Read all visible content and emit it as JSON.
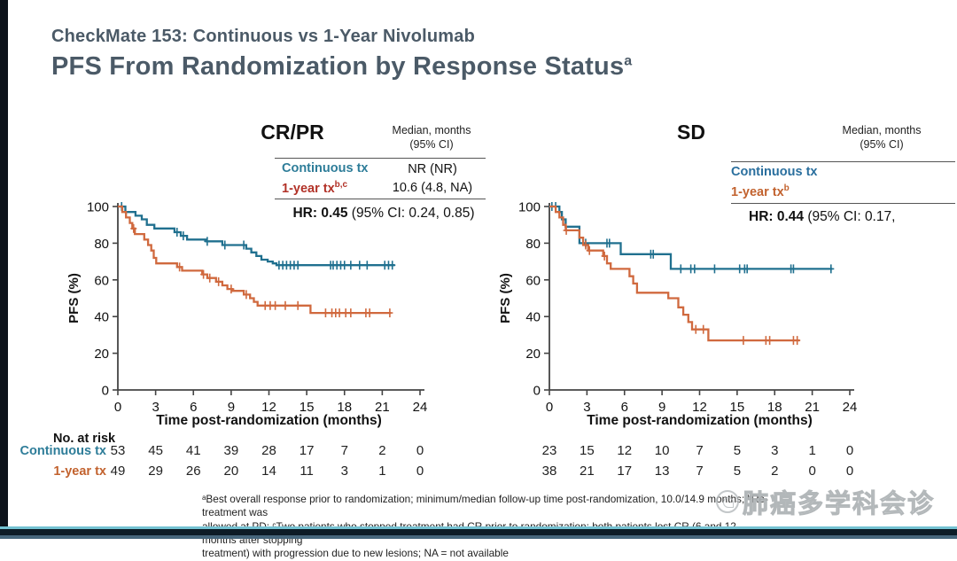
{
  "header": {
    "title": "CheckMate 153: Continuous vs 1-Year Nivolumab",
    "subtitle": "PFS From Randomization by Response Status",
    "subtitle_sup": "a",
    "title_color": "#4b5a67"
  },
  "chart_data": {
    "type": "line",
    "subtype": "kaplan-meier-step",
    "charts": [
      {
        "title": "CR/PR",
        "median_header_line1": "Median,  months",
        "median_header_line2": "(95% CI)",
        "legend_rows": [
          {
            "label": "Continuous  tx",
            "sup": "",
            "value": "NR  (NR)",
            "color": "#2e7d99"
          },
          {
            "label": "1-year  tx",
            "sup": "b,c",
            "value": "10.6  (4.8, NA)",
            "color": "#b23228"
          }
        ],
        "hr_bold": "HR: 0.45",
        "hr_rest": " (95% CI: 0.24, 0.85)",
        "ylabel": "PFS (%)",
        "xlabel": "Time post-randomization (months)",
        "xlim": [
          0,
          24
        ],
        "ylim": [
          0,
          100
        ],
        "xticks": [
          0,
          3,
          6,
          9,
          12,
          15,
          18,
          21,
          24
        ],
        "yticks": [
          0,
          20,
          40,
          60,
          80,
          100
        ],
        "series": [
          {
            "name": "Continuous tx",
            "color": "#20708f",
            "steps": [
              [
                0,
                100
              ],
              [
                0.6,
                97
              ],
              [
                1.4,
                95
              ],
              [
                1.9,
                93
              ],
              [
                2.3,
                90
              ],
              [
                2.9,
                88
              ],
              [
                4.5,
                86
              ],
              [
                5.0,
                84
              ],
              [
                5.5,
                82
              ],
              [
                7.0,
                81
              ],
              [
                8.3,
                79
              ],
              [
                10.2,
                77
              ],
              [
                10.6,
                75
              ],
              [
                11.0,
                73
              ],
              [
                11.4,
                71
              ],
              [
                11.9,
                70
              ],
              [
                12.3,
                69
              ],
              [
                12.6,
                68
              ],
              [
                22.0,
                68
              ]
            ],
            "censors": [
              [
                0.3,
                100
              ],
              [
                4.7,
                86
              ],
              [
                5.2,
                84
              ],
              [
                7.1,
                81
              ],
              [
                8.5,
                79
              ],
              [
                10.0,
                79
              ],
              [
                12.8,
                68
              ],
              [
                13.1,
                68
              ],
              [
                13.4,
                68
              ],
              [
                13.7,
                68
              ],
              [
                14.0,
                68
              ],
              [
                14.3,
                68
              ],
              [
                16.9,
                68
              ],
              [
                17.1,
                68
              ],
              [
                17.4,
                68
              ],
              [
                17.7,
                68
              ],
              [
                18.0,
                68
              ],
              [
                18.5,
                68
              ],
              [
                19.2,
                68
              ],
              [
                19.8,
                68
              ],
              [
                21.2,
                68
              ],
              [
                21.5,
                68
              ],
              [
                21.8,
                68
              ]
            ]
          },
          {
            "name": "1-year tx",
            "color": "#d0693e",
            "steps": [
              [
                0,
                100
              ],
              [
                0.35,
                97
              ],
              [
                0.65,
                94
              ],
              [
                0.95,
                91
              ],
              [
                1.15,
                88
              ],
              [
                1.35,
                85
              ],
              [
                2.1,
                82
              ],
              [
                2.4,
                79
              ],
              [
                2.65,
                76
              ],
              [
                2.85,
                72
              ],
              [
                3.05,
                69
              ],
              [
                4.7,
                67
              ],
              [
                5.1,
                65
              ],
              [
                6.7,
                63
              ],
              [
                7.1,
                61
              ],
              [
                7.8,
                59
              ],
              [
                8.3,
                57
              ],
              [
                8.7,
                55
              ],
              [
                9.1,
                54
              ],
              [
                10.0,
                52
              ],
              [
                10.5,
                50
              ],
              [
                10.8,
                48
              ],
              [
                11.1,
                46
              ],
              [
                15.3,
                42
              ],
              [
                21.7,
                42
              ]
            ],
            "censors": [
              [
                1.25,
                88
              ],
              [
                4.9,
                67
              ],
              [
                6.8,
                63
              ],
              [
                7.3,
                61
              ],
              [
                8.0,
                59
              ],
              [
                9.0,
                55
              ],
              [
                10.2,
                52
              ],
              [
                11.7,
                46
              ],
              [
                12.1,
                46
              ],
              [
                12.5,
                46
              ],
              [
                13.3,
                46
              ],
              [
                14.3,
                46
              ],
              [
                16.5,
                42
              ],
              [
                17.0,
                42
              ],
              [
                17.3,
                42
              ],
              [
                17.6,
                42
              ],
              [
                18.1,
                42
              ],
              [
                18.5,
                42
              ],
              [
                19.7,
                42
              ],
              [
                20.0,
                42
              ],
              [
                21.6,
                42
              ]
            ]
          }
        ],
        "at_risk": {
          "heading": "No. at risk",
          "rows": [
            {
              "label": "Continuous tx",
              "color": "#2e7d99",
              "values": [
                53,
                45,
                41,
                39,
                28,
                17,
                7,
                2,
                0
              ]
            },
            {
              "label": "1-year tx",
              "color": "#c2622e",
              "values": [
                49,
                29,
                26,
                20,
                14,
                11,
                3,
                1,
                0
              ]
            }
          ]
        }
      },
      {
        "title": "SD",
        "median_header_line1": "Median,  months",
        "median_header_line2": "(95% CI)",
        "legend_rows": [
          {
            "label": "Continuous  tx",
            "sup": "",
            "value": "",
            "color": "#2a6f9e"
          },
          {
            "label": "1-year  tx",
            "sup": "b",
            "value": "",
            "color": "#c2622e"
          }
        ],
        "hr_bold": "HR: 0.44",
        "hr_rest": " (95% CI: 0.17,",
        "ylabel": "PFS (%)",
        "xlabel": "Time post-randomization (months)",
        "xlim": [
          0,
          24
        ],
        "ylim": [
          0,
          100
        ],
        "xticks": [
          0,
          3,
          6,
          9,
          12,
          15,
          18,
          21,
          24
        ],
        "yticks": [
          0,
          20,
          40,
          60,
          80,
          100
        ],
        "series": [
          {
            "name": "Continuous tx",
            "color": "#20708f",
            "steps": [
              [
                0,
                100
              ],
              [
                0.8,
                97
              ],
              [
                1.0,
                93
              ],
              [
                1.3,
                89
              ],
              [
                2.4,
                80
              ],
              [
                5.7,
                74
              ],
              [
                9.7,
                66
              ],
              [
                22.6,
                66
              ]
            ],
            "censors": [
              [
                0.2,
                100
              ],
              [
                0.5,
                100
              ],
              [
                2.9,
                80
              ],
              [
                4.6,
                80
              ],
              [
                4.8,
                80
              ],
              [
                8.1,
                74
              ],
              [
                8.3,
                74
              ],
              [
                10.5,
                66
              ],
              [
                11.3,
                66
              ],
              [
                11.6,
                66
              ],
              [
                13.2,
                66
              ],
              [
                15.2,
                66
              ],
              [
                15.6,
                66
              ],
              [
                15.8,
                66
              ],
              [
                19.3,
                66
              ],
              [
                19.5,
                66
              ],
              [
                22.5,
                66
              ]
            ]
          },
          {
            "name": "1-year tx",
            "color": "#d0693e",
            "steps": [
              [
                0,
                100
              ],
              [
                0.5,
                97
              ],
              [
                0.8,
                94
              ],
              [
                1.1,
                90
              ],
              [
                1.3,
                87
              ],
              [
                2.4,
                83
              ],
              [
                2.7,
                79
              ],
              [
                3.1,
                76
              ],
              [
                4.3,
                73
              ],
              [
                4.6,
                69
              ],
              [
                4.9,
                66
              ],
              [
                6.4,
                62
              ],
              [
                6.7,
                58
              ],
              [
                7.0,
                53
              ],
              [
                9.5,
                50
              ],
              [
                10.3,
                45
              ],
              [
                10.7,
                41
              ],
              [
                11.1,
                37
              ],
              [
                11.4,
                33
              ],
              [
                12.7,
                27
              ],
              [
                20.0,
                27
              ]
            ],
            "censors": [
              [
                1.35,
                87
              ],
              [
                2.9,
                79
              ],
              [
                3.2,
                76
              ],
              [
                4.4,
                73
              ],
              [
                11.7,
                33
              ],
              [
                12.3,
                33
              ],
              [
                15.5,
                27
              ],
              [
                17.3,
                27
              ],
              [
                17.6,
                27
              ],
              [
                19.5,
                27
              ],
              [
                19.8,
                27
              ]
            ]
          }
        ],
        "at_risk": {
          "heading": "",
          "rows": [
            {
              "label": "",
              "color": "#2e7d99",
              "values": [
                23,
                15,
                12,
                10,
                7,
                5,
                3,
                1,
                0
              ]
            },
            {
              "label": "",
              "color": "#c2622e",
              "values": [
                38,
                21,
                17,
                13,
                7,
                5,
                2,
                0,
                0
              ]
            }
          ]
        }
      }
    ]
  },
  "footnotes": {
    "line1": "ᵃBest overall response prior to randomization;  minimum/median  follow-up time  post-randomization,  10.0/14.9  months;  ᵇRe-treatment  was",
    "line2": "allowed  at PD;  ᶜTwo patients  who  stopped treatment  had CR  prior to randomization;  both patients  lost CR  (6 and  12  months  after  stopping",
    "line3": "treatment) with  progression due to new  lesions;  NA  = not available"
  },
  "watermark": {
    "text": "肺癌多学科会诊"
  }
}
